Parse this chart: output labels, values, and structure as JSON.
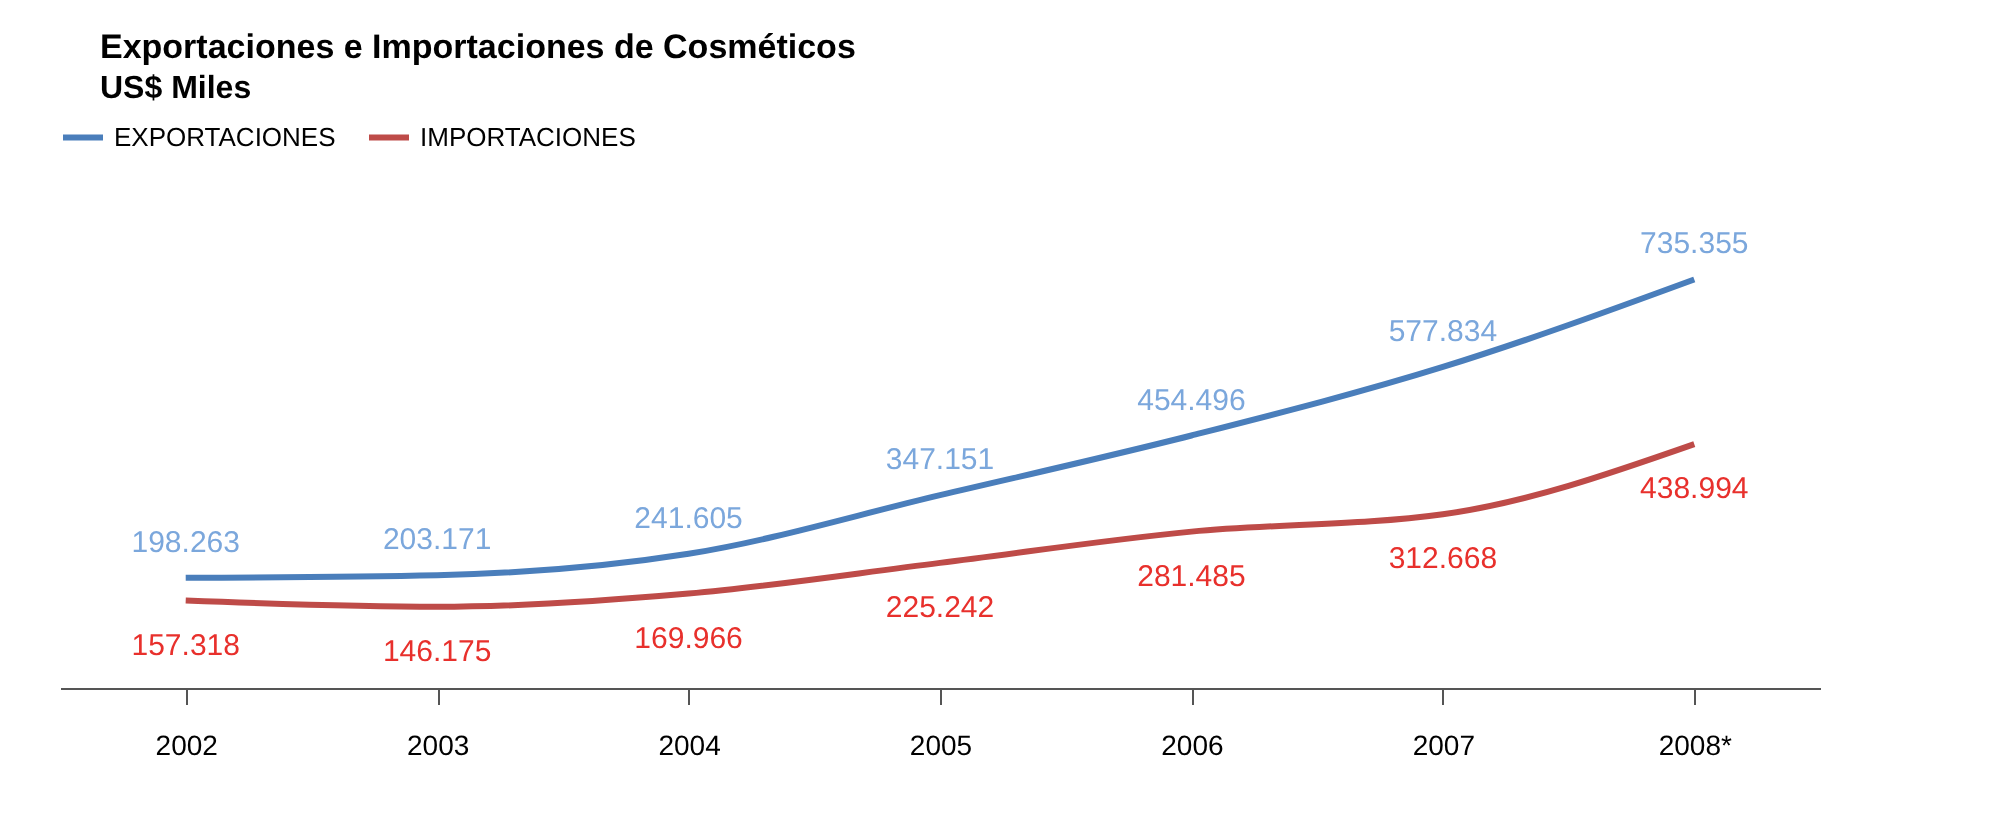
{
  "chart_data": {
    "type": "line",
    "title": "Exportaciones e Importaciones de Cosméticos",
    "subtitle": "US$ Miles",
    "categories": [
      "2002",
      "2003",
      "2004",
      "2005",
      "2006",
      "2007",
      "2008*"
    ],
    "series": [
      {
        "name": "EXPORTACIONES",
        "color": "#4a7ebb",
        "values": [
          198263,
          203171,
          241605,
          347151,
          454496,
          577834,
          735355
        ],
        "value_labels": [
          "198.263",
          "203.171",
          "241.605",
          "347.151",
          "454.496",
          "577.834",
          "735.355"
        ]
      },
      {
        "name": "IMPORTACIONES",
        "color": "#be4b48",
        "values": [
          157318,
          146175,
          169966,
          225242,
          281485,
          312668,
          438994
        ],
        "value_labels": [
          "157.318",
          "146.175",
          "169.966",
          "225.242",
          "281.485",
          "312.668",
          "438.994"
        ]
      }
    ],
    "legend": "top",
    "marker": "none",
    "grid": false,
    "line_style": "solid"
  }
}
